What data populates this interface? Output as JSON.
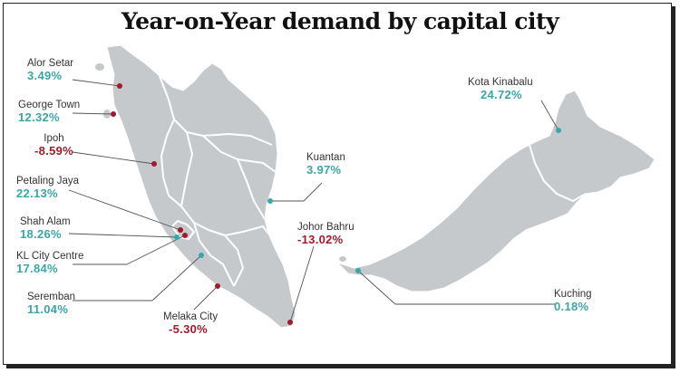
{
  "title": "Year-on-Year demand by capital city",
  "colors": {
    "positive": "#3aa6a9",
    "negative": "#a01c2c",
    "land": "#c6c9cc",
    "border": "#ffffff"
  },
  "cities": {
    "alor_setar": {
      "name": "Alor Setar",
      "value": "3.49%"
    },
    "george_town": {
      "name": "George Town",
      "value": "12.32%"
    },
    "ipoh": {
      "name": "Ipoh",
      "value": "-8.59%"
    },
    "petaling_jaya": {
      "name": "Petaling Jaya",
      "value": "22.13%"
    },
    "shah_alam": {
      "name": "Shah Alam",
      "value": "18.26%"
    },
    "kl_city_centre": {
      "name": "KL City Centre",
      "value": "17.84%"
    },
    "seremban": {
      "name": "Seremban",
      "value": "11.04%"
    },
    "melaka_city": {
      "name": "Melaka City",
      "value": "-5.30%"
    },
    "johor_bahru": {
      "name": "Johor Bahru",
      "value": "-13.02%"
    },
    "kuantan": {
      "name": "Kuantan",
      "value": "3.97%"
    },
    "kota_kinabalu": {
      "name": "Kota Kinabalu",
      "value": "24.72%"
    },
    "kuching": {
      "name": "Kuching",
      "value": "0.18%"
    }
  }
}
